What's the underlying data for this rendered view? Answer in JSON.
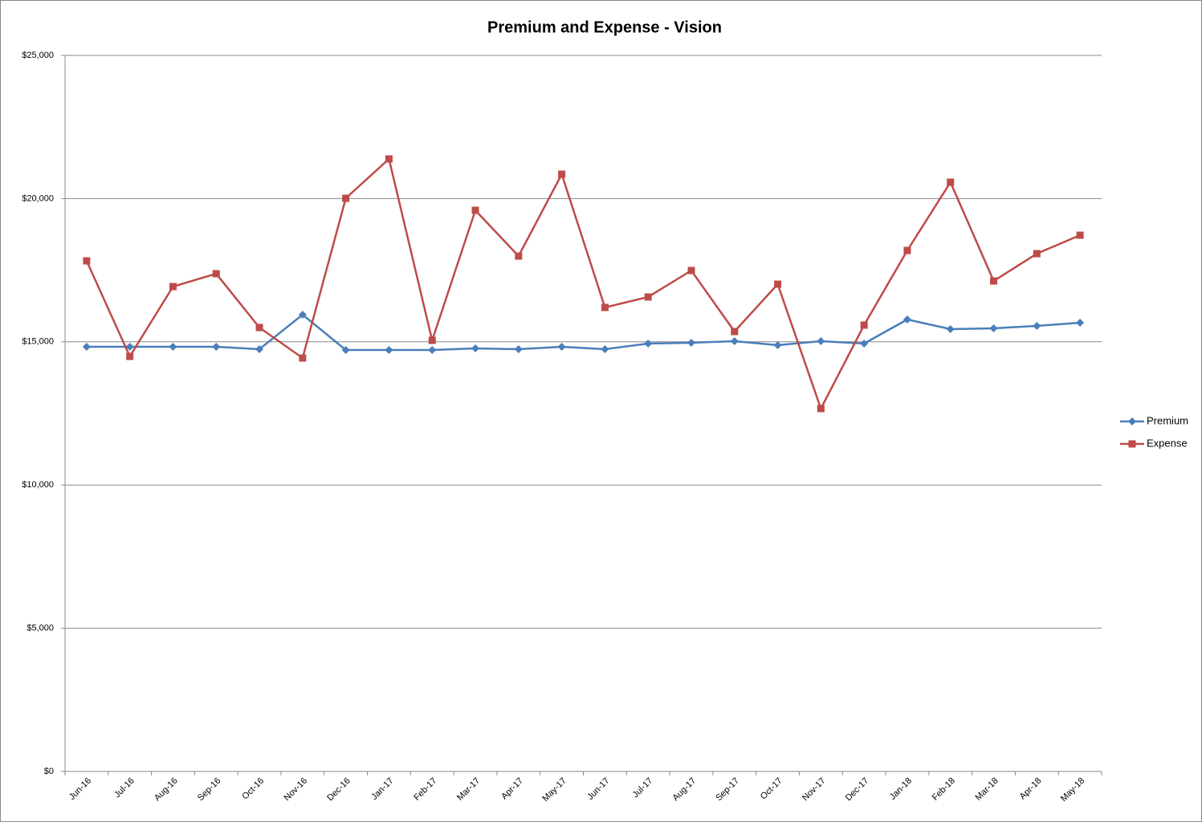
{
  "chart_data": {
    "type": "line",
    "title": "Premium and Expense - Vision",
    "categories": [
      "Jun-16",
      "Jul-16",
      "Aug-16",
      "Sep-16",
      "Oct-16",
      "Nov-16",
      "Dec-16",
      "Jan-17",
      "Feb-17",
      "Mar-17",
      "Apr-17",
      "May-17",
      "Jun-17",
      "Jul-17",
      "Aug-17",
      "Sep-17",
      "Oct-17",
      "Nov-17",
      "Dec-17",
      "Jan-18",
      "Feb-18",
      "Mar-18",
      "Apr-18",
      "May-18"
    ],
    "series": [
      {
        "name": "Premium",
        "color": "#4a7ebb",
        "marker": "diamond",
        "values": [
          14826,
          14826,
          14826,
          14826,
          14742,
          15947,
          14714,
          14714,
          14714,
          14770,
          14742,
          14826,
          14742,
          14938,
          14966,
          15022,
          14882,
          15022,
          14938,
          15779,
          15443,
          15471,
          15555,
          15667
        ]
      },
      {
        "name": "Expense",
        "color": "#be4b48",
        "marker": "square",
        "values": [
          17825,
          14490,
          16928,
          17377,
          15499,
          14434,
          20011,
          21385,
          15050,
          19591,
          17993,
          20852,
          16200,
          16564,
          17489,
          15359,
          17012,
          12668,
          15583,
          18189,
          20572,
          17124,
          18077,
          18722
        ]
      }
    ],
    "ylim": [
      0,
      25000
    ],
    "yticks": [
      {
        "value": 0,
        "label": "$0"
      },
      {
        "value": 5000,
        "label": "$5,000"
      },
      {
        "value": 10000,
        "label": "$10,000"
      },
      {
        "value": 15000,
        "label": "$15,000"
      },
      {
        "value": 20000,
        "label": "$20,000"
      },
      {
        "value": 25000,
        "label": "$25,000"
      }
    ],
    "grid": true,
    "legend": "right"
  }
}
